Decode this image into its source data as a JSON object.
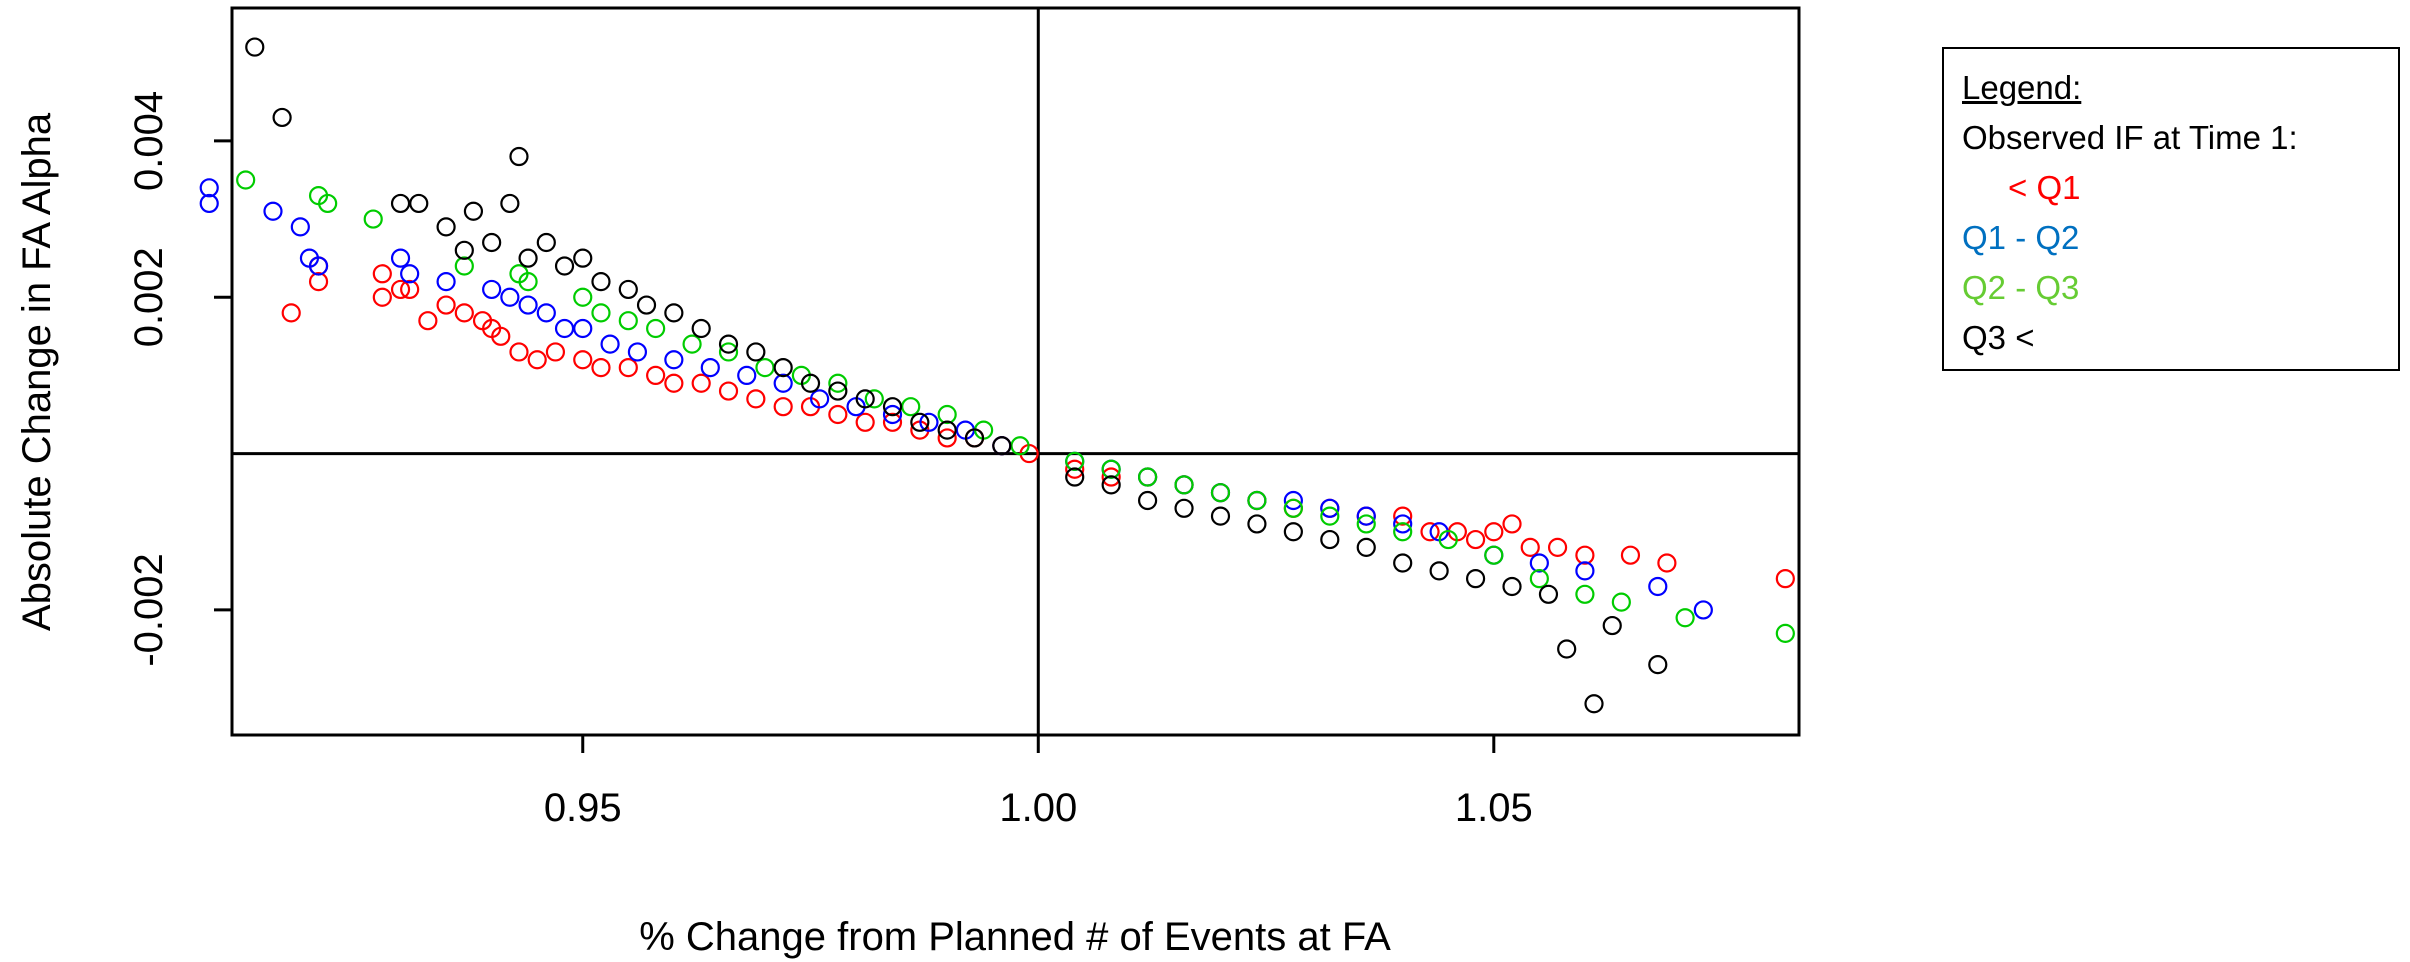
{
  "chart_data": {
    "type": "scatter",
    "title": "",
    "xlabel": "% Change from Planned # of Events at FA",
    "ylabel": "Absolute Change in FA Alpha",
    "xlim": [
      0.9115,
      1.0835
    ],
    "ylim": [
      -0.0036,
      0.0057
    ],
    "xticks": [
      0.95,
      1.0,
      1.05
    ],
    "xtick_labels": [
      "0.95",
      "1.00",
      "1.05"
    ],
    "yticks": [
      -0.002,
      0.002,
      0.004
    ],
    "ytick_labels": [
      "-0.002",
      "0.002",
      "0.004"
    ],
    "reference_lines": {
      "x": 1.0,
      "y": 0.0
    },
    "legend": {
      "title": "Legend:",
      "subtitle": "Observed IF at Time 1:",
      "entries": [
        "< Q1",
        "Q1 - Q2",
        "Q2 - Q3",
        "Q3 <"
      ],
      "placement": "right, outside plot"
    },
    "series": [
      {
        "name": "< Q1",
        "color": "#ff0000",
        "x": [
          0.918,
          0.921,
          0.921,
          0.928,
          0.928,
          0.93,
          0.931,
          0.933,
          0.935,
          0.937,
          0.939,
          0.94,
          0.941,
          0.943,
          0.945,
          0.947,
          0.95,
          0.952,
          0.955,
          0.958,
          0.96,
          0.963,
          0.966,
          0.969,
          0.972,
          0.975,
          0.978,
          0.981,
          0.984,
          0.987,
          0.99,
          0.993,
          0.996,
          0.999,
          1.004,
          1.008,
          1.012,
          1.016,
          1.02,
          1.024,
          1.028,
          1.032,
          1.036,
          1.04,
          1.043,
          1.046,
          1.048,
          1.05,
          1.052,
          1.054,
          1.057,
          1.06,
          1.065,
          1.069,
          1.082
        ],
        "y": [
          0.0018,
          0.0022,
          0.0024,
          0.0023,
          0.002,
          0.0021,
          0.0021,
          0.0017,
          0.0019,
          0.0018,
          0.0017,
          0.0016,
          0.0015,
          0.0013,
          0.0012,
          0.0013,
          0.0012,
          0.0011,
          0.0011,
          0.001,
          0.0009,
          0.0009,
          0.0008,
          0.0007,
          0.0006,
          0.0006,
          0.0005,
          0.0004,
          0.0004,
          0.0003,
          0.0002,
          0.0002,
          0.0001,
          0.0,
          -0.0002,
          -0.0003,
          -0.0003,
          -0.0004,
          -0.0005,
          -0.0006,
          -0.0007,
          -0.0007,
          -0.0008,
          -0.0008,
          -0.001,
          -0.001,
          -0.0011,
          -0.001,
          -0.0009,
          -0.0012,
          -0.0012,
          -0.0013,
          -0.0013,
          -0.0014,
          -0.0016
        ]
      },
      {
        "name": "Q1 - Q2",
        "color": "#0000ff",
        "x": [
          0.909,
          0.909,
          0.916,
          0.919,
          0.92,
          0.921,
          0.93,
          0.931,
          0.935,
          0.94,
          0.942,
          0.944,
          0.946,
          0.948,
          0.95,
          0.953,
          0.956,
          0.96,
          0.964,
          0.968,
          0.972,
          0.976,
          0.98,
          0.984,
          0.988,
          0.992,
          0.996,
          1.004,
          1.008,
          1.012,
          1.016,
          1.02,
          1.024,
          1.028,
          1.032,
          1.036,
          1.04,
          1.044,
          1.05,
          1.055,
          1.06,
          1.068,
          1.073
        ],
        "y": [
          0.0034,
          0.0032,
          0.0031,
          0.0029,
          0.0025,
          0.0024,
          0.0025,
          0.0023,
          0.0022,
          0.0021,
          0.002,
          0.0019,
          0.0018,
          0.0016,
          0.0016,
          0.0014,
          0.0013,
          0.0012,
          0.0011,
          0.001,
          0.0009,
          0.0007,
          0.0006,
          0.0005,
          0.0004,
          0.0003,
          0.0001,
          -0.0001,
          -0.0002,
          -0.0003,
          -0.0004,
          -0.0005,
          -0.0006,
          -0.0006,
          -0.0007,
          -0.0008,
          -0.0009,
          -0.001,
          -0.0013,
          -0.0014,
          -0.0015,
          -0.0017,
          -0.002
        ]
      },
      {
        "name": "Q2 - Q3",
        "color": "#00cc00",
        "x": [
          0.913,
          0.921,
          0.922,
          0.927,
          0.937,
          0.943,
          0.944,
          0.95,
          0.952,
          0.955,
          0.958,
          0.962,
          0.966,
          0.97,
          0.974,
          0.978,
          0.982,
          0.986,
          0.99,
          0.994,
          0.998,
          1.004,
          1.008,
          1.012,
          1.016,
          1.02,
          1.024,
          1.028,
          1.032,
          1.036,
          1.04,
          1.045,
          1.05,
          1.055,
          1.06,
          1.064,
          1.071,
          1.082
        ],
        "y": [
          0.0035,
          0.0033,
          0.0032,
          0.003,
          0.0024,
          0.0023,
          0.0022,
          0.002,
          0.0018,
          0.0017,
          0.0016,
          0.0014,
          0.0013,
          0.0011,
          0.001,
          0.0009,
          0.0007,
          0.0006,
          0.0005,
          0.0003,
          0.0001,
          -0.0001,
          -0.0002,
          -0.0003,
          -0.0004,
          -0.0005,
          -0.0006,
          -0.0007,
          -0.0008,
          -0.0009,
          -0.001,
          -0.0011,
          -0.0013,
          -0.0016,
          -0.0018,
          -0.0019,
          -0.0021,
          -0.0023
        ]
      },
      {
        "name": "Q3 <",
        "color": "#000000",
        "x": [
          0.914,
          0.917,
          0.93,
          0.932,
          0.935,
          0.937,
          0.938,
          0.94,
          0.942,
          0.943,
          0.944,
          0.946,
          0.948,
          0.95,
          0.952,
          0.955,
          0.957,
          0.96,
          0.963,
          0.966,
          0.969,
          0.972,
          0.975,
          0.978,
          0.981,
          0.984,
          0.987,
          0.99,
          0.993,
          0.996,
          1.004,
          1.008,
          1.012,
          1.016,
          1.02,
          1.024,
          1.028,
          1.032,
          1.036,
          1.04,
          1.044,
          1.048,
          1.052,
          1.056,
          1.058,
          1.061,
          1.063,
          1.068
        ],
        "y": [
          0.0052,
          0.0043,
          0.0032,
          0.0032,
          0.0029,
          0.0026,
          0.0031,
          0.0027,
          0.0032,
          0.0038,
          0.0025,
          0.0027,
          0.0024,
          0.0025,
          0.0022,
          0.0021,
          0.0019,
          0.0018,
          0.0016,
          0.0014,
          0.0013,
          0.0011,
          0.0009,
          0.0008,
          0.0007,
          0.0006,
          0.0004,
          0.0003,
          0.0002,
          0.0001,
          -0.0003,
          -0.0004,
          -0.0006,
          -0.0007,
          -0.0008,
          -0.0009,
          -0.001,
          -0.0011,
          -0.0012,
          -0.0014,
          -0.0015,
          -0.0016,
          -0.0017,
          -0.0018,
          -0.0025,
          -0.0032,
          -0.0022,
          -0.0027
        ]
      }
    ]
  }
}
